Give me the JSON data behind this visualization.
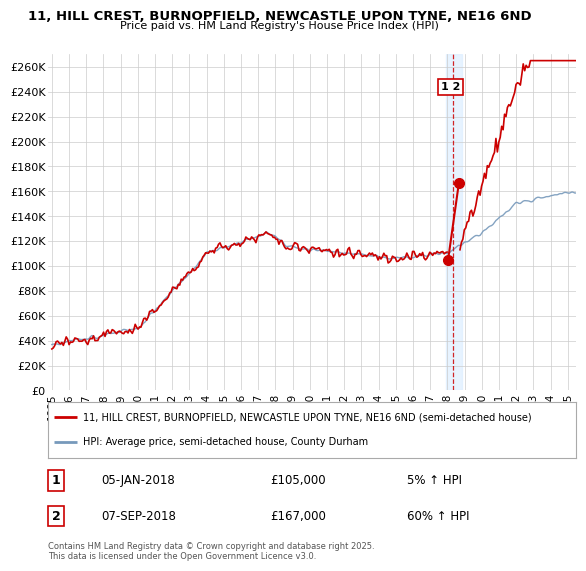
{
  "title_line1": "11, HILL CREST, BURNOPFIELD, NEWCASTLE UPON TYNE, NE16 6ND",
  "title_line2": "Price paid vs. HM Land Registry's House Price Index (HPI)",
  "ylim": [
    0,
    270000
  ],
  "yticks": [
    0,
    20000,
    40000,
    60000,
    80000,
    100000,
    120000,
    140000,
    160000,
    180000,
    200000,
    220000,
    240000,
    260000
  ],
  "ytick_labels": [
    "£0",
    "£20K",
    "£40K",
    "£60K",
    "£80K",
    "£100K",
    "£120K",
    "£140K",
    "£160K",
    "£180K",
    "£200K",
    "£220K",
    "£240K",
    "£260K"
  ],
  "xlim_start": 1994.8,
  "xlim_end": 2025.5,
  "xticks": [
    1995,
    1996,
    1997,
    1998,
    1999,
    2000,
    2001,
    2002,
    2003,
    2004,
    2005,
    2006,
    2007,
    2008,
    2009,
    2010,
    2011,
    2012,
    2013,
    2014,
    2015,
    2016,
    2017,
    2018,
    2019,
    2020,
    2021,
    2022,
    2023,
    2024,
    2025
  ],
  "sale1_x": 2018.04,
  "sale1_y": 105000,
  "sale2_x": 2018.67,
  "sale2_y": 167000,
  "vline_x": 2018.35,
  "legend_line1": "11, HILL CREST, BURNOPFIELD, NEWCASTLE UPON TYNE, NE16 6ND (semi-detached house)",
  "legend_line2": "HPI: Average price, semi-detached house, County Durham",
  "footer": "Contains HM Land Registry data © Crown copyright and database right 2025.\nThis data is licensed under the Open Government Licence v3.0.",
  "line_color_red": "#cc0000",
  "line_color_blue": "#7799bb",
  "vband_color": "#ddeeff",
  "background_color": "#ffffff",
  "grid_color": "#cccccc"
}
